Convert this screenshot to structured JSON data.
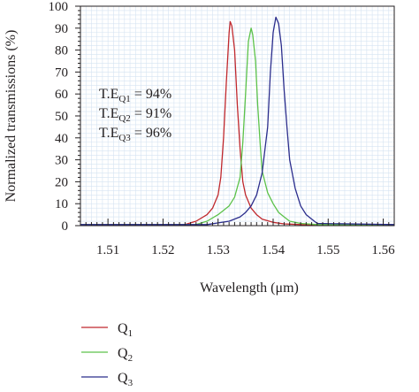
{
  "chart_data": {
    "type": "line",
    "title": "",
    "xlabel": "Wavelength (μm)",
    "ylabel": "Normalized transmissions (%)",
    "xlim": [
      1.505,
      1.562
    ],
    "ylim": [
      0,
      100
    ],
    "xticks": [
      1.51,
      1.52,
      1.53,
      1.54,
      1.55,
      1.56
    ],
    "xtick_labels": [
      "1.51",
      "1.52",
      "1.53",
      "1.54",
      "1.55",
      "1.56"
    ],
    "yticks": [
      0,
      10,
      20,
      30,
      40,
      50,
      60,
      70,
      80,
      90,
      100
    ],
    "ytick_labels": [
      "0",
      "10",
      "20",
      "30",
      "40",
      "50",
      "60",
      "70",
      "80",
      "90",
      "100"
    ],
    "grid": true,
    "legend_position": "below plot",
    "annotations": [
      {
        "base": "T.E",
        "sub": "Q1",
        "rest": " = 94%"
      },
      {
        "base": "T.E",
        "sub": "Q2",
        "rest": " = 91%"
      },
      {
        "base": "T.E",
        "sub": "Q3",
        "rest": " = 96%"
      }
    ],
    "series": [
      {
        "name": "Q1",
        "label_base": "Q",
        "label_sub": "1",
        "color": "#c0282d",
        "x": [
          1.505,
          1.524,
          1.526,
          1.528,
          1.529,
          1.53,
          1.5305,
          1.531,
          1.5315,
          1.532,
          1.5322,
          1.5325,
          1.533,
          1.5335,
          1.534,
          1.5345,
          1.535,
          1.536,
          1.537,
          1.538,
          1.54,
          1.542,
          1.545,
          1.562
        ],
        "y": [
          0.5,
          0.5,
          2,
          5,
          8,
          14,
          22,
          40,
          65,
          88,
          93,
          91,
          80,
          55,
          35,
          20,
          14,
          8,
          5,
          3,
          1.5,
          0.8,
          0.5,
          0.5
        ]
      },
      {
        "name": "Q2",
        "label_base": "Q",
        "label_sub": "2",
        "color": "#5cc24a",
        "x": [
          1.505,
          1.526,
          1.528,
          1.53,
          1.532,
          1.533,
          1.534,
          1.5345,
          1.535,
          1.5355,
          1.536,
          1.5363,
          1.5368,
          1.5372,
          1.5377,
          1.538,
          1.539,
          1.54,
          1.541,
          1.542,
          1.543,
          1.545,
          1.548,
          1.562
        ],
        "y": [
          0.5,
          0.5,
          2,
          5,
          9,
          13,
          22,
          38,
          60,
          84,
          90,
          87,
          75,
          55,
          35,
          25,
          15,
          10,
          6,
          4,
          2,
          1,
          0.5,
          0.5
        ]
      },
      {
        "name": "Q3",
        "label_base": "Q",
        "label_sub": "3",
        "color": "#2b2d8c",
        "x": [
          1.505,
          1.528,
          1.532,
          1.534,
          1.535,
          1.536,
          1.537,
          1.538,
          1.539,
          1.5395,
          1.54,
          1.5405,
          1.541,
          1.5415,
          1.542,
          1.5425,
          1.543,
          1.544,
          1.545,
          1.546,
          1.547,
          1.548,
          1.562
        ],
        "y": [
          0.5,
          0.5,
          2,
          4,
          6,
          9,
          14,
          24,
          45,
          70,
          88,
          95,
          92,
          82,
          62,
          45,
          30,
          17,
          9,
          5,
          3,
          1,
          0.5
        ]
      }
    ]
  }
}
